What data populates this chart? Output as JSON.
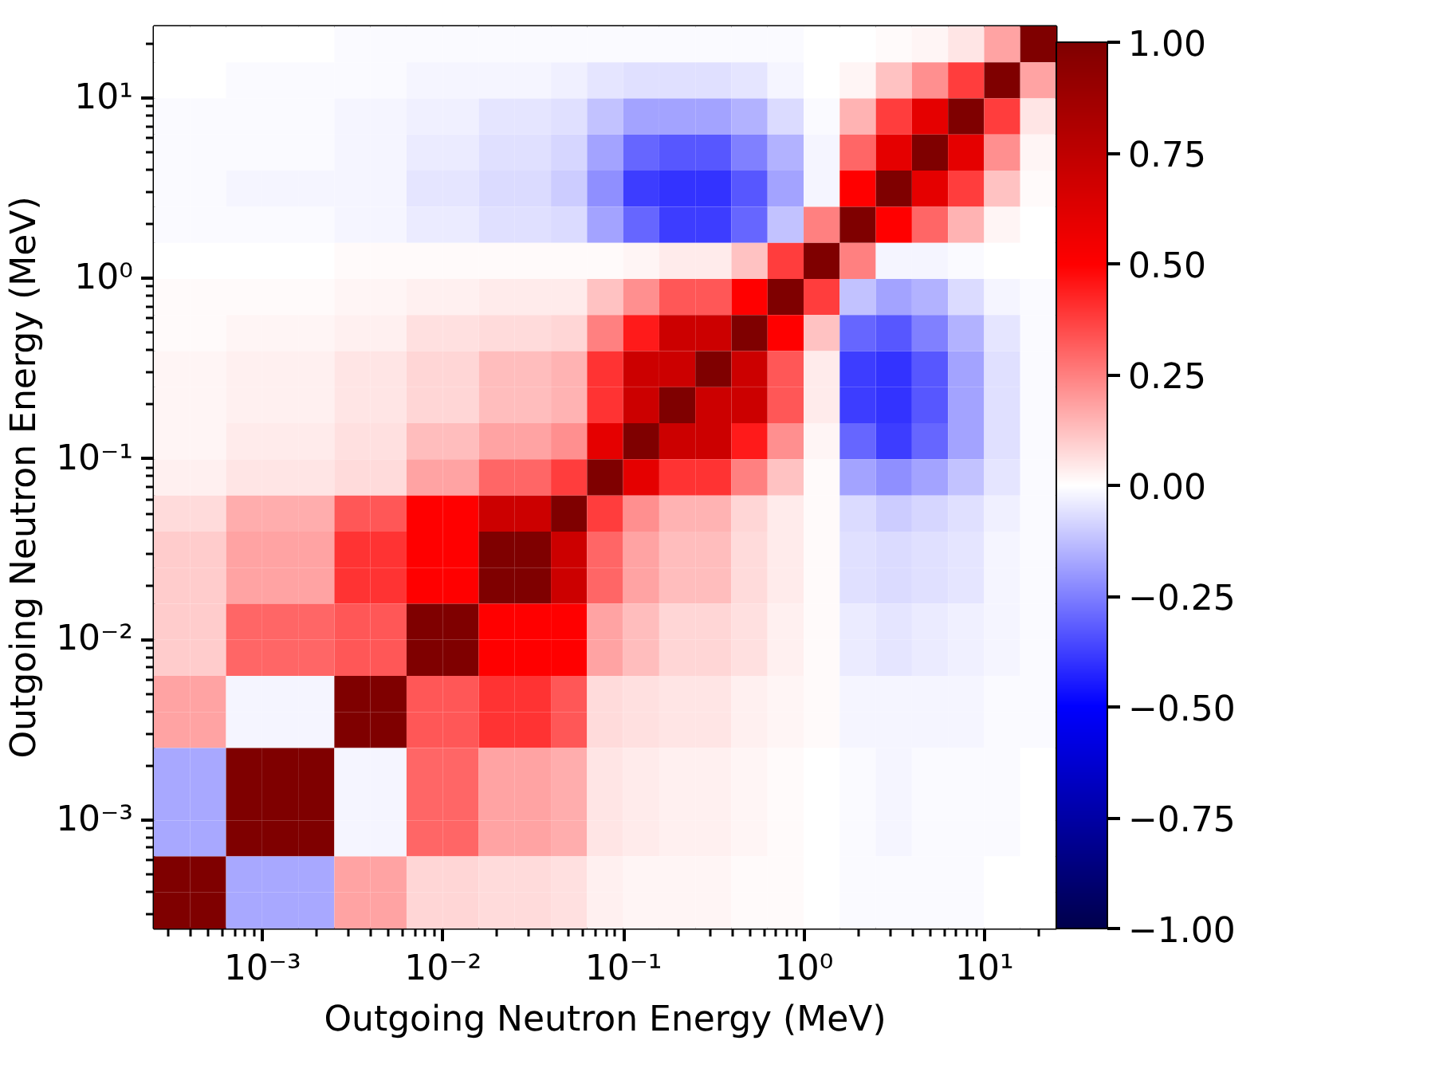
{
  "chart_data": {
    "type": "heatmap",
    "xlabel": "Outgoing Neutron Energy (MeV)",
    "ylabel": "Outgoing Neutron Energy (MeV)",
    "log": "xy",
    "xlim": [
      0.00025,
      25
    ],
    "ylim": [
      0.00025,
      25
    ],
    "xticks": [
      {
        "value": 0.001,
        "label": "10⁻³"
      },
      {
        "value": 0.01,
        "label": "10⁻²"
      },
      {
        "value": 0.1,
        "label": "10⁻¹"
      },
      {
        "value": 1,
        "label": "10⁰"
      },
      {
        "value": 10,
        "label": "10¹"
      }
    ],
    "yticks": [
      {
        "value": 0.001,
        "label": "10⁻³"
      },
      {
        "value": 0.01,
        "label": "10⁻²"
      },
      {
        "value": 0.1,
        "label": "10⁻¹"
      },
      {
        "value": 1,
        "label": "10⁰"
      },
      {
        "value": 10,
        "label": "10¹"
      }
    ],
    "colors": [
      "#00004c",
      "#0000ff",
      "#ffffff",
      "#ff0000",
      "#7f0000"
    ],
    "clim": [
      -1,
      1
    ],
    "cticks": [
      {
        "value": -1,
        "label": "−1.00"
      },
      {
        "value": -0.75,
        "label": "−0.75"
      },
      {
        "value": -0.5,
        "label": "−0.50"
      },
      {
        "value": -0.25,
        "label": "−0.25"
      },
      {
        "value": 0,
        "label": "0.00"
      },
      {
        "value": 0.25,
        "label": "0.25"
      },
      {
        "value": 0.5,
        "label": "0.50"
      },
      {
        "value": 0.75,
        "label": "0.75"
      },
      {
        "value": 1,
        "label": "1.00"
      }
    ],
    "cells": [
      [
        0,
        0,
        0,
        0,
        0,
        -0.01,
        -0.01,
        -0.01,
        -0.01,
        -0.01,
        -0.01,
        -0.01,
        -0.01,
        -0.01,
        -0.01,
        -0.01,
        -0.01,
        -0.01,
        0,
        0,
        0.01,
        0.02,
        0.05,
        0.18,
        1
      ],
      [
        0,
        0,
        -0.01,
        -0.01,
        -0.01,
        -0.01,
        -0.01,
        -0.02,
        -0.02,
        -0.02,
        -0.02,
        -0.03,
        -0.05,
        -0.06,
        -0.06,
        -0.06,
        -0.05,
        -0.02,
        0,
        0.02,
        0.12,
        0.22,
        0.38,
        1,
        0.18
      ],
      [
        -0.01,
        -0.01,
        -0.01,
        -0.01,
        -0.01,
        -0.02,
        -0.02,
        -0.03,
        -0.03,
        -0.05,
        -0.05,
        -0.06,
        -0.12,
        -0.18,
        -0.18,
        -0.18,
        -0.15,
        -0.07,
        -0.01,
        0.15,
        0.38,
        0.6,
        1,
        0.38,
        0.05
      ],
      [
        -0.01,
        -0.01,
        -0.01,
        -0.01,
        -0.01,
        -0.02,
        -0.02,
        -0.04,
        -0.04,
        -0.06,
        -0.06,
        -0.08,
        -0.18,
        -0.3,
        -0.33,
        -0.33,
        -0.25,
        -0.15,
        -0.02,
        0.3,
        0.6,
        1,
        0.6,
        0.22,
        0.02
      ],
      [
        -0.01,
        -0.01,
        -0.02,
        -0.02,
        -0.02,
        -0.02,
        -0.02,
        -0.05,
        -0.05,
        -0.07,
        -0.07,
        -0.1,
        -0.22,
        -0.38,
        -0.4,
        -0.4,
        -0.33,
        -0.18,
        -0.02,
        0.5,
        1,
        0.6,
        0.38,
        0.12,
        0.01
      ],
      [
        -0.01,
        -0.01,
        -0.01,
        -0.01,
        -0.01,
        -0.02,
        -0.02,
        -0.04,
        -0.04,
        -0.06,
        -0.06,
        -0.07,
        -0.18,
        -0.3,
        -0.38,
        -0.38,
        -0.3,
        -0.12,
        0.25,
        1,
        0.5,
        0.3,
        0.15,
        0.02,
        0
      ],
      [
        0,
        0,
        0,
        0,
        0,
        0.01,
        0.01,
        0.01,
        0.01,
        0.01,
        0.01,
        0.01,
        0.01,
        0.02,
        0.04,
        0.04,
        0.12,
        0.38,
        1,
        0.25,
        -0.02,
        -0.02,
        -0.01,
        0,
        0
      ],
      [
        0.01,
        0.01,
        0.01,
        0.01,
        0.01,
        0.02,
        0.02,
        0.03,
        0.03,
        0.04,
        0.04,
        0.04,
        0.12,
        0.22,
        0.33,
        0.33,
        0.5,
        1,
        0.38,
        -0.12,
        -0.18,
        -0.15,
        -0.07,
        -0.02,
        -0.01
      ],
      [
        0.01,
        0.01,
        0.02,
        0.02,
        0.02,
        0.03,
        0.03,
        0.06,
        0.06,
        0.07,
        0.07,
        0.08,
        0.25,
        0.45,
        0.7,
        0.7,
        1,
        0.5,
        0.12,
        -0.3,
        -0.33,
        -0.25,
        -0.15,
        -0.05,
        -0.01
      ],
      [
        0.02,
        0.02,
        0.03,
        0.03,
        0.03,
        0.05,
        0.05,
        0.08,
        0.08,
        0.13,
        0.13,
        0.15,
        0.4,
        0.7,
        0.7,
        1,
        0.7,
        0.33,
        0.04,
        -0.38,
        -0.4,
        -0.33,
        -0.18,
        -0.06,
        -0.01
      ],
      [
        0.02,
        0.02,
        0.03,
        0.03,
        0.03,
        0.05,
        0.05,
        0.08,
        0.08,
        0.13,
        0.13,
        0.15,
        0.4,
        0.7,
        1,
        0.7,
        0.7,
        0.33,
        0.04,
        -0.38,
        -0.4,
        -0.33,
        -0.18,
        -0.06,
        -0.01
      ],
      [
        0.02,
        0.02,
        0.04,
        0.04,
        0.04,
        0.06,
        0.06,
        0.13,
        0.13,
        0.18,
        0.18,
        0.22,
        0.6,
        1,
        0.7,
        0.7,
        0.45,
        0.22,
        0.02,
        -0.3,
        -0.38,
        -0.3,
        -0.18,
        -0.06,
        -0.01
      ],
      [
        0.03,
        0.03,
        0.05,
        0.05,
        0.05,
        0.07,
        0.07,
        0.18,
        0.18,
        0.3,
        0.3,
        0.38,
        1,
        0.6,
        0.4,
        0.4,
        0.25,
        0.12,
        0.01,
        -0.18,
        -0.22,
        -0.18,
        -0.12,
        -0.05,
        -0.01
      ],
      [
        0.07,
        0.07,
        0.16,
        0.16,
        0.16,
        0.33,
        0.33,
        0.5,
        0.5,
        0.7,
        0.7,
        1,
        0.38,
        0.22,
        0.15,
        0.15,
        0.08,
        0.04,
        0.01,
        -0.07,
        -0.1,
        -0.08,
        -0.06,
        -0.03,
        -0.01
      ],
      [
        0.1,
        0.1,
        0.18,
        0.18,
        0.18,
        0.4,
        0.4,
        0.5,
        0.5,
        1,
        1,
        0.7,
        0.3,
        0.18,
        0.13,
        0.13,
        0.07,
        0.04,
        0.01,
        -0.06,
        -0.07,
        -0.06,
        -0.05,
        -0.02,
        -0.01
      ],
      [
        0.1,
        0.1,
        0.18,
        0.18,
        0.18,
        0.4,
        0.4,
        0.5,
        0.5,
        1,
        1,
        0.7,
        0.3,
        0.18,
        0.13,
        0.13,
        0.07,
        0.04,
        0.01,
        -0.06,
        -0.07,
        -0.06,
        -0.05,
        -0.02,
        -0.01
      ],
      [
        0.1,
        0.1,
        0.3,
        0.3,
        0.3,
        0.33,
        0.33,
        1,
        1,
        0.5,
        0.5,
        0.5,
        0.18,
        0.13,
        0.08,
        0.08,
        0.06,
        0.03,
        0.01,
        -0.04,
        -0.05,
        -0.04,
        -0.03,
        -0.02,
        -0.01
      ],
      [
        0.1,
        0.1,
        0.3,
        0.3,
        0.3,
        0.33,
        0.33,
        1,
        1,
        0.5,
        0.5,
        0.5,
        0.18,
        0.13,
        0.08,
        0.08,
        0.06,
        0.03,
        0.01,
        -0.04,
        -0.05,
        -0.04,
        -0.03,
        -0.02,
        -0.01
      ],
      [
        0.18,
        0.18,
        -0.02,
        -0.02,
        -0.02,
        1,
        1,
        0.33,
        0.33,
        0.4,
        0.4,
        0.33,
        0.07,
        0.06,
        0.05,
        0.05,
        0.03,
        0.02,
        0.01,
        -0.02,
        -0.02,
        -0.02,
        -0.02,
        -0.01,
        -0.01
      ],
      [
        0.18,
        0.18,
        -0.02,
        -0.02,
        -0.02,
        1,
        1,
        0.33,
        0.33,
        0.4,
        0.4,
        0.33,
        0.07,
        0.06,
        0.05,
        0.05,
        0.03,
        0.02,
        0.01,
        -0.02,
        -0.02,
        -0.02,
        -0.02,
        -0.01,
        -0.01
      ],
      [
        -0.17,
        -0.17,
        1,
        1,
        1,
        -0.02,
        -0.02,
        0.3,
        0.3,
        0.18,
        0.18,
        0.16,
        0.05,
        0.04,
        0.03,
        0.03,
        0.02,
        0.01,
        0,
        -0.01,
        -0.02,
        -0.01,
        -0.01,
        -0.01,
        0
      ],
      [
        -0.17,
        -0.17,
        1,
        1,
        1,
        -0.02,
        -0.02,
        0.3,
        0.3,
        0.18,
        0.18,
        0.16,
        0.05,
        0.04,
        0.03,
        0.03,
        0.02,
        0.01,
        0,
        -0.01,
        -0.02,
        -0.01,
        -0.01,
        -0.01,
        0
      ],
      [
        -0.17,
        -0.17,
        1,
        1,
        1,
        -0.02,
        -0.02,
        0.3,
        0.3,
        0.18,
        0.18,
        0.16,
        0.05,
        0.04,
        0.03,
        0.03,
        0.02,
        0.01,
        0,
        -0.01,
        -0.02,
        -0.01,
        -0.01,
        -0.01,
        0
      ],
      [
        1,
        1,
        -0.17,
        -0.17,
        -0.17,
        0.18,
        0.18,
        0.08,
        0.08,
        0.07,
        0.07,
        0.06,
        0.03,
        0.02,
        0.02,
        0.02,
        0.01,
        0.01,
        0,
        -0.01,
        -0.01,
        -0.01,
        -0.01,
        0,
        0
      ],
      [
        1,
        1,
        -0.17,
        -0.17,
        -0.17,
        0.18,
        0.18,
        0.08,
        0.08,
        0.07,
        0.07,
        0.06,
        0.03,
        0.02,
        0.02,
        0.02,
        0.01,
        0.01,
        0,
        -0.01,
        -0.01,
        -0.01,
        -0.01,
        0,
        0
      ]
    ]
  }
}
